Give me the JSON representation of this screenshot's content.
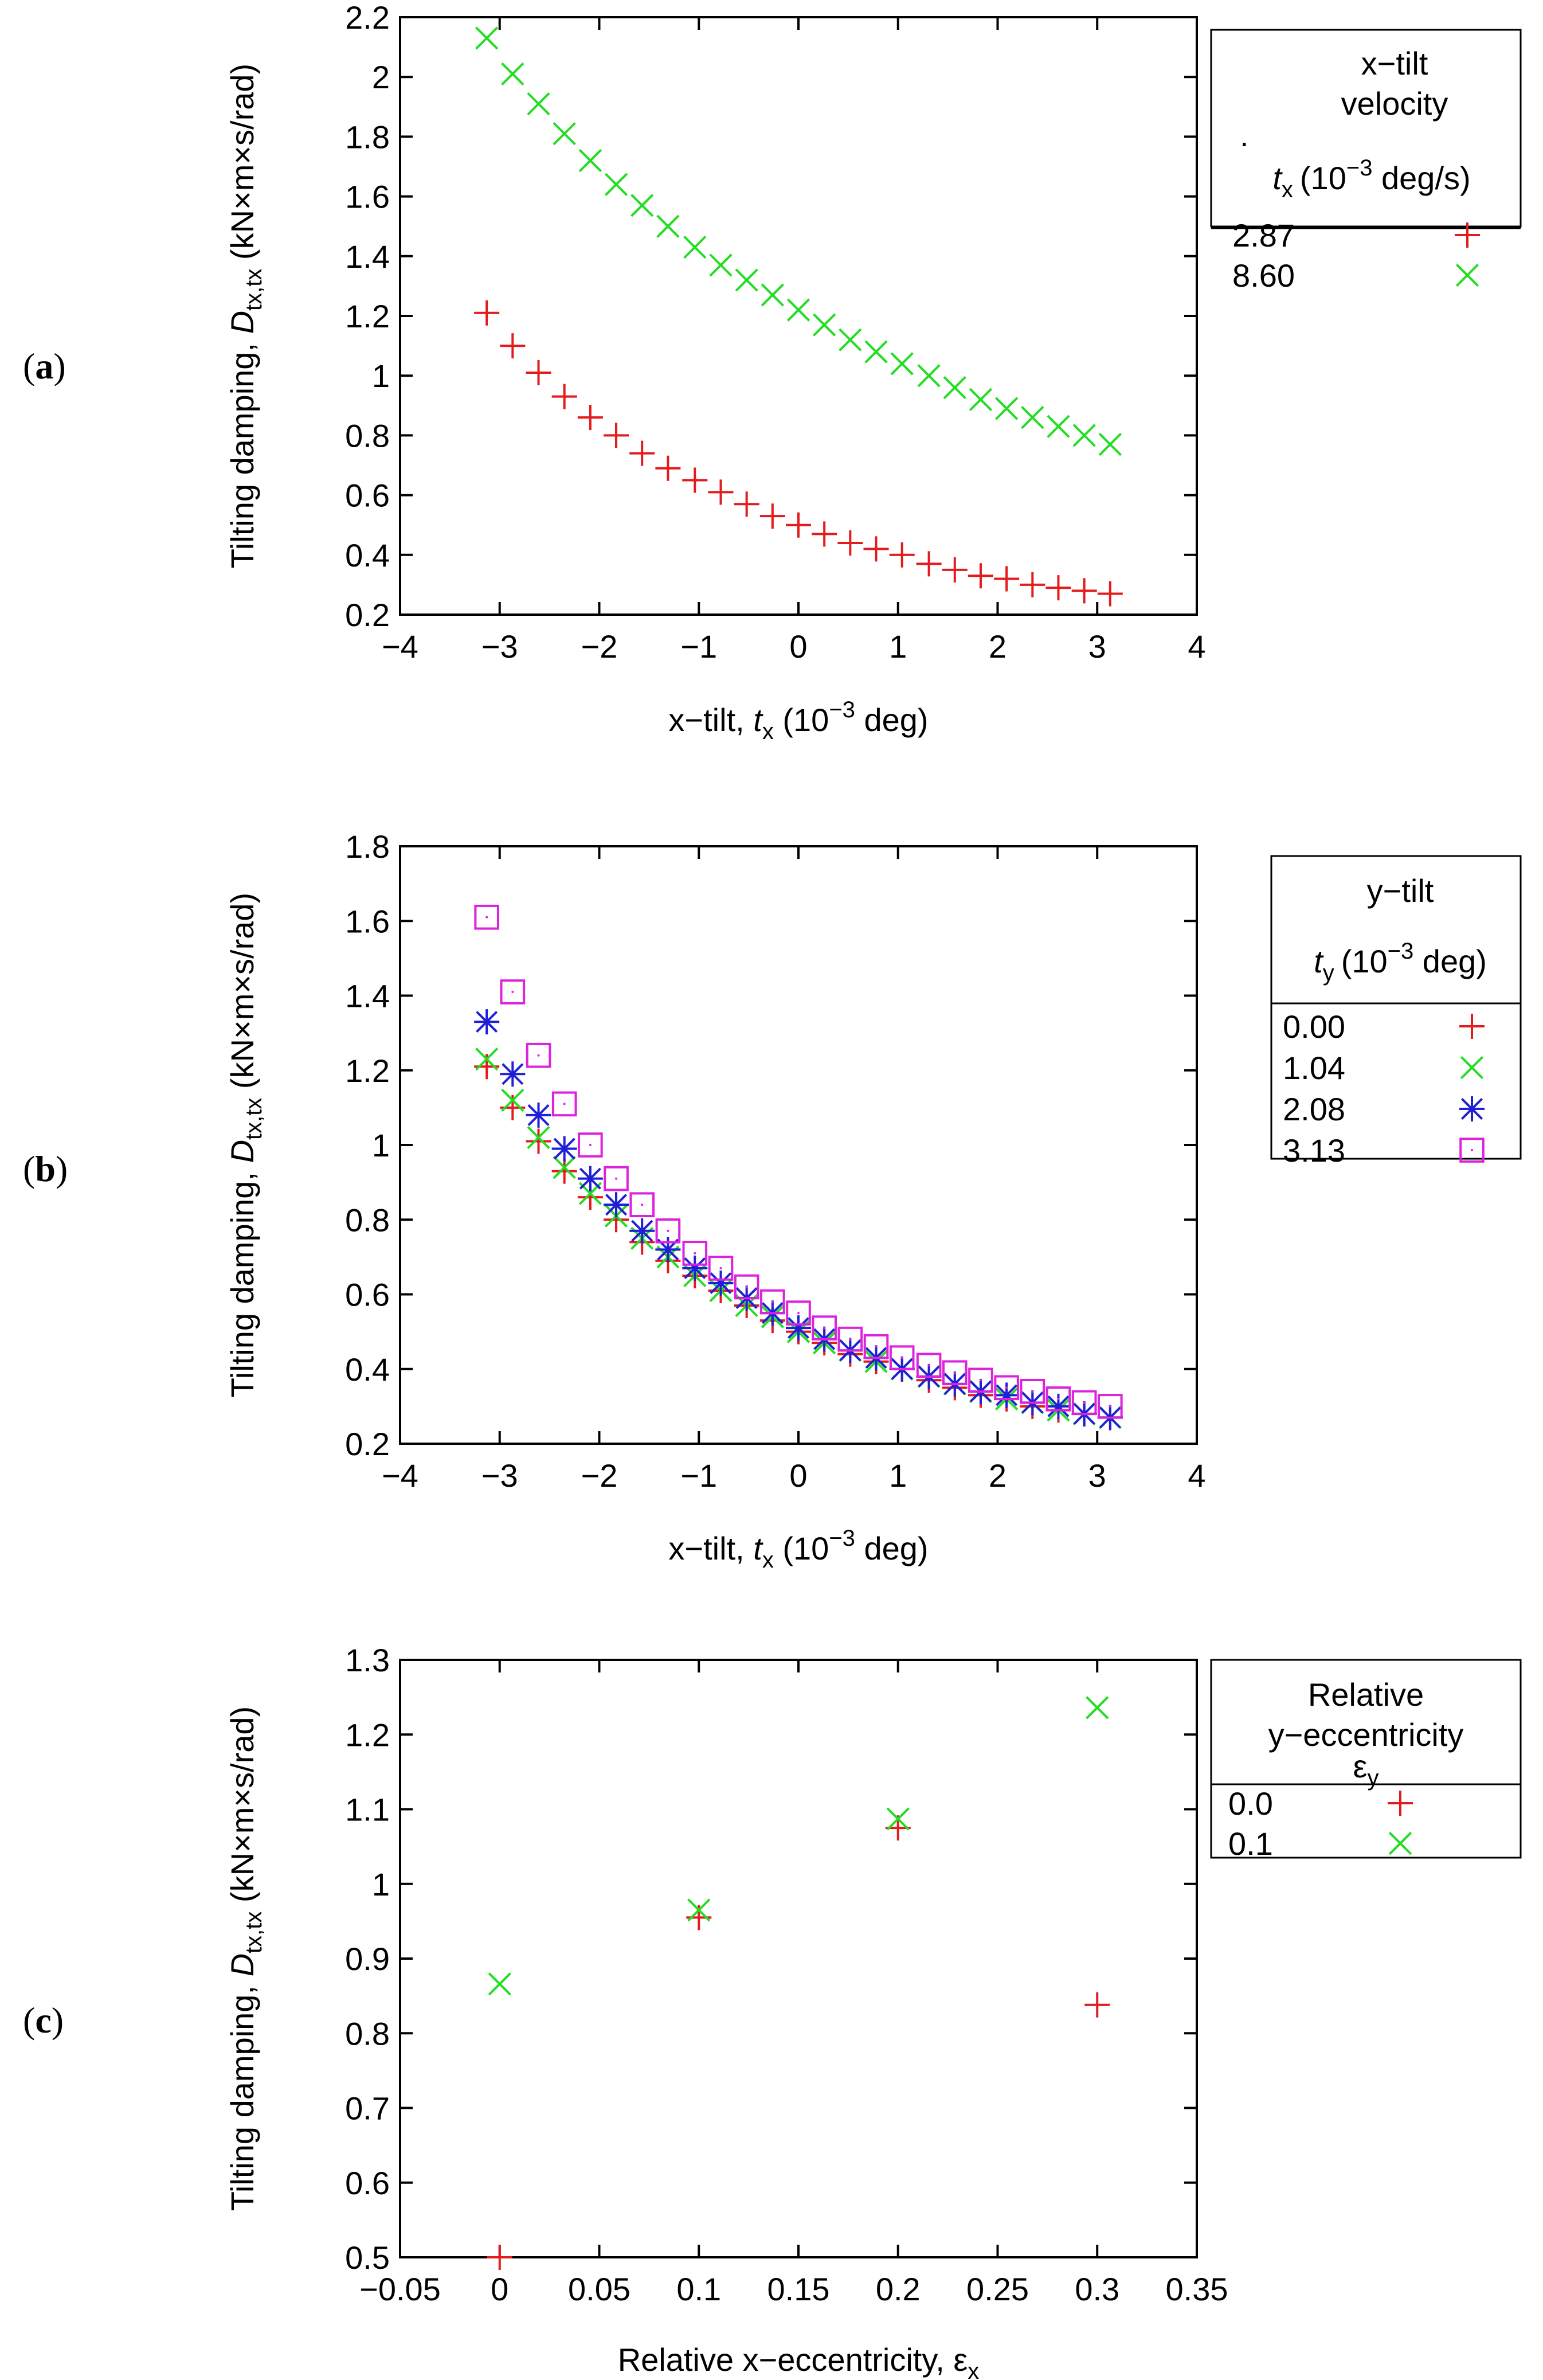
{
  "panels": [
    {
      "label_letter": "a",
      "legend": {
        "title_lines": [
          "x−tilt",
          "velocity"
        ],
        "var_dot": ".",
        "var_symbol": "t",
        "var_sub": "x",
        "var_pre": "(10",
        "var_exp": "−3",
        "var_post": " deg/s)"
      }
    },
    {
      "label_letter": "b",
      "legend": {
        "title_lines": [
          "y−tilt"
        ],
        "var_symbol": "t",
        "var_sub": "y",
        "var_pre": "(10",
        "var_exp": "−3",
        "var_post": " deg)"
      }
    },
    {
      "label_letter": "c",
      "legend": {
        "title_lines": [
          "Relative",
          "y−eccentricity"
        ],
        "var_symbol": "ε",
        "var_sub": "y"
      }
    }
  ],
  "ylabel": {
    "prefix": "Tilting damping, ",
    "symbol": "D",
    "sub": "tx,tx",
    "units": " (kN×m×s/rad)"
  },
  "xlabel_ab": {
    "prefix": "x−tilt, ",
    "symbol": "t",
    "sub": "x",
    "pre": " (10",
    "exp": "−3",
    "post": " deg)"
  },
  "xlabel_c": {
    "prefix": "Relative x−eccentricity, ",
    "symbol": "ε",
    "sub": "x"
  },
  "chart_data": [
    {
      "type": "scatter",
      "title": "",
      "xlim": [
        -4,
        4
      ],
      "ylim": [
        0.2,
        2.2
      ],
      "xticks": [
        "−4",
        "−3",
        "−2",
        "−1",
        "0",
        "1",
        "2",
        "3",
        "4"
      ],
      "yticks": [
        "0.2",
        "0.4",
        "0.6",
        "0.8",
        "1",
        "1.2",
        "1.4",
        "1.6",
        "1.8",
        "2",
        "2.2"
      ],
      "x": [
        -3.13,
        -2.87,
        -2.61,
        -2.35,
        -2.09,
        -1.83,
        -1.57,
        -1.31,
        -1.04,
        -0.78,
        -0.52,
        -0.26,
        0.0,
        0.26,
        0.52,
        0.78,
        1.04,
        1.31,
        1.57,
        1.83,
        2.09,
        2.35,
        2.61,
        2.87,
        3.13
      ],
      "series": [
        {
          "name": "2.87",
          "marker": "plus",
          "color": "#e41a1c",
          "values": [
            1.21,
            1.1,
            1.01,
            0.93,
            0.86,
            0.8,
            0.74,
            0.69,
            0.65,
            0.61,
            0.57,
            0.53,
            0.5,
            0.47,
            0.44,
            0.42,
            0.4,
            0.37,
            0.35,
            0.33,
            0.32,
            0.3,
            0.29,
            0.28,
            0.27
          ]
        },
        {
          "name": "8.60",
          "marker": "cross",
          "color": "#22dd22",
          "values": [
            2.13,
            2.01,
            1.91,
            1.81,
            1.72,
            1.64,
            1.57,
            1.5,
            1.43,
            1.37,
            1.32,
            1.27,
            1.22,
            1.17,
            1.12,
            1.08,
            1.04,
            1.0,
            0.96,
            0.92,
            0.89,
            0.86,
            0.83,
            0.8,
            0.77
          ]
        }
      ]
    },
    {
      "type": "scatter",
      "title": "",
      "xlim": [
        -4,
        4
      ],
      "ylim": [
        0.2,
        1.8
      ],
      "xticks": [
        "−4",
        "−3",
        "−2",
        "−1",
        "0",
        "1",
        "2",
        "3",
        "4"
      ],
      "yticks": [
        "0.2",
        "0.4",
        "0.6",
        "0.8",
        "1",
        "1.2",
        "1.4",
        "1.6",
        "1.8"
      ],
      "x": [
        -3.13,
        -2.87,
        -2.61,
        -2.35,
        -2.09,
        -1.83,
        -1.57,
        -1.31,
        -1.04,
        -0.78,
        -0.52,
        -0.26,
        0.0,
        0.26,
        0.52,
        0.78,
        1.04,
        1.31,
        1.57,
        1.83,
        2.09,
        2.35,
        2.61,
        2.87,
        3.13
      ],
      "series": [
        {
          "name": "0.00",
          "marker": "plus",
          "color": "#e41a1c",
          "values": [
            1.21,
            1.1,
            1.01,
            0.93,
            0.86,
            0.8,
            0.74,
            0.69,
            0.65,
            0.61,
            0.57,
            0.53,
            0.5,
            0.47,
            0.44,
            0.42,
            0.4,
            0.37,
            0.35,
            0.33,
            0.32,
            0.3,
            0.29,
            0.28,
            0.27
          ]
        },
        {
          "name": "1.04",
          "marker": "cross",
          "color": "#22dd22",
          "values": [
            1.23,
            1.12,
            1.02,
            0.94,
            0.87,
            0.81,
            0.75,
            0.7,
            0.65,
            0.61,
            0.57,
            0.54,
            0.5,
            0.47,
            0.45,
            0.42,
            0.4,
            0.38,
            0.36,
            0.34,
            0.32,
            0.31,
            0.29,
            0.28,
            0.27
          ]
        },
        {
          "name": "2.08",
          "marker": "star",
          "color": "#1f1fd6",
          "values": [
            1.33,
            1.19,
            1.08,
            0.99,
            0.91,
            0.84,
            0.77,
            0.72,
            0.67,
            0.63,
            0.59,
            0.55,
            0.51,
            0.48,
            0.45,
            0.43,
            0.4,
            0.38,
            0.36,
            0.34,
            0.33,
            0.31,
            0.3,
            0.28,
            0.27
          ]
        },
        {
          "name": "3.13",
          "marker": "square",
          "color": "#dd22dd",
          "values": [
            1.61,
            1.41,
            1.24,
            1.11,
            1.0,
            0.91,
            0.84,
            0.77,
            0.71,
            0.67,
            0.62,
            0.58,
            0.55,
            0.51,
            0.48,
            0.46,
            0.43,
            0.41,
            0.39,
            0.37,
            0.35,
            0.34,
            0.32,
            0.31,
            0.3
          ]
        }
      ]
    },
    {
      "type": "scatter",
      "title": "",
      "xlim": [
        -0.05,
        0.35
      ],
      "ylim": [
        0.5,
        1.3
      ],
      "xticks": [
        "−0.05",
        "0",
        "0.05",
        "0.1",
        "0.15",
        "0.2",
        "0.25",
        "0.3",
        "0.35"
      ],
      "yticks": [
        "0.5",
        "0.6",
        "0.7",
        "0.8",
        "0.9",
        "1",
        "1.1",
        "1.2",
        "1.3"
      ],
      "x": [
        0.0,
        0.1,
        0.2,
        0.3
      ],
      "series": [
        {
          "name": "0.0",
          "marker": "plus",
          "color": "#e41a1c",
          "values": [
            0.5,
            0.955,
            1.075,
            0.838
          ]
        },
        {
          "name": "0.1",
          "marker": "cross",
          "color": "#22dd22",
          "values": [
            0.866,
            0.965,
            1.087,
            1.236
          ]
        }
      ]
    }
  ]
}
